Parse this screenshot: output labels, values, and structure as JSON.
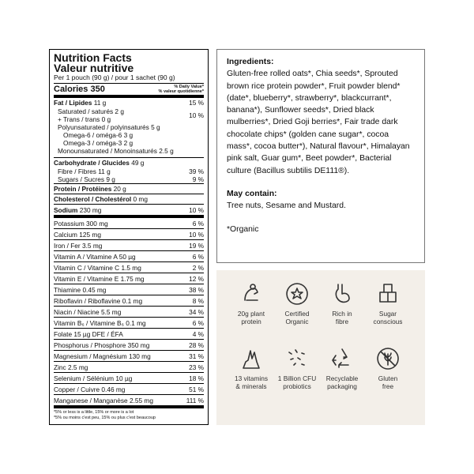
{
  "nutrition": {
    "title": "Nutrition Facts",
    "title_fr": "Valeur nutritive",
    "serving": "Per 1 pouch (90 g) / pour 1 sachet (90 g)",
    "calories": "Calories 350",
    "dv_header": [
      "% Daily Value*",
      "% valeur quotidienne*"
    ],
    "rows": [
      {
        "label": "Fat / Lipides",
        "amount": "11 g",
        "dv": "15 %"
      },
      {
        "label": "Saturated / saturés",
        "amount": "2 g",
        "dv": "10 %"
      },
      {
        "label": "+ Trans / trans",
        "amount": "0 g"
      },
      {
        "label": "Polyunsaturated / polyinsaturés",
        "amount": "5 g"
      },
      {
        "label": "Omega-6 / oméga-6",
        "amount": "3 g"
      },
      {
        "label": "Omega-3 / oméga-3",
        "amount": "2 g"
      },
      {
        "label": "Monounsaturated / Monoinsaturés",
        "amount": "2.5 g"
      },
      {
        "label": "Carbohydrate / Glucides",
        "amount": "49 g"
      },
      {
        "label": "Fibre / Fibres",
        "amount": "11 g",
        "dv": "39 %"
      },
      {
        "label": "Sugars / Sucres",
        "amount": "9 g",
        "dv": "9 %"
      },
      {
        "label": "Protein / Protéines",
        "amount": "20 g"
      },
      {
        "label": "Cholesterol / Cholestérol",
        "amount": "0 mg"
      },
      {
        "label": "Sodium",
        "amount": "230 mg",
        "dv": "10 %"
      },
      {
        "label": "Potassium",
        "amount": "300 mg",
        "dv": "6 %"
      },
      {
        "label": "Calcium",
        "amount": "125 mg",
        "dv": "10 %"
      },
      {
        "label": "Iron / Fer",
        "amount": "3.5 mg",
        "dv": "19 %"
      },
      {
        "label": "Vitamin A / Vitamine A",
        "amount": "50 µg",
        "dv": "6 %"
      },
      {
        "label": "Vitamin C / Vitamine C",
        "amount": "1.5 mg",
        "dv": "2 %"
      },
      {
        "label": "Vitamin E / Vitamine E",
        "amount": "1.75 mg",
        "dv": "12 %"
      },
      {
        "label": "Thiamine",
        "amount": "0.45 mg",
        "dv": "38 %"
      },
      {
        "label": "Riboflavin / Riboflavine",
        "amount": "0.1 mg",
        "dv": "8 %"
      },
      {
        "label": "Niacin / Niacine",
        "amount": "5.5 mg",
        "dv": "34 %"
      },
      {
        "label": "Vitamin B₆ / Vitamine B₆",
        "amount": "0.1 mg",
        "dv": "6 %"
      },
      {
        "label": "Folate",
        "amount": "15 µg DFE / ÉFA",
        "dv": "4 %"
      },
      {
        "label": "Phosphorus / Phosphore",
        "amount": "350 mg",
        "dv": "28 %"
      },
      {
        "label": "Magnesium / Magnésium",
        "amount": "130 mg",
        "dv": "31 %"
      },
      {
        "label": "Zinc",
        "amount": "2.5 mg",
        "dv": "23 %"
      },
      {
        "label": "Selenium / Sélénium",
        "amount": "10 µg",
        "dv": "18 %"
      },
      {
        "label": "Copper / Cuivre",
        "amount": "0.46 mg",
        "dv": "51 %"
      },
      {
        "label": "Manganese / Manganèse",
        "amount": "2.55 mg",
        "dv": "111 %"
      }
    ],
    "footnote": [
      "*5% or less is a little, 15% or more is a lot",
      "*5% ou moins c'est peu, 15% ou plus c'est beaucoup"
    ]
  },
  "ingredients": {
    "heading": "Ingredients:",
    "text": "Gluten-free rolled oats*, Chia seeds*, Sprouted brown rice protein powder*, Fruit powder blend* (date*, blueberry*, strawberry*, blackcurrant*, banana*), Sunflower seeds*, Dried black mulberries*, Dried Goji berries*, Fair trade dark chocolate chips* (golden cane sugar*, cocoa mass*, cocoa butter*), Natural flavour*, Himalayan pink salt, Guar gum*, Beet powder*, Bacterial culture (Bacillus subtilis DE111®).",
    "may_contain_heading": "May contain:",
    "may_contain": "Tree nuts, Sesame and Mustard.",
    "note": "*Organic"
  },
  "features": [
    {
      "lines": [
        "20g plant",
        "protein"
      ]
    },
    {
      "lines": [
        "Certified",
        "Organic"
      ]
    },
    {
      "lines": [
        "Rich in",
        "fibre"
      ]
    },
    {
      "lines": [
        "Sugar",
        "conscious"
      ]
    },
    {
      "lines": [
        "13 vitamins",
        "& minerals"
      ]
    },
    {
      "lines": [
        "1 Billion CFU",
        "probiotics"
      ]
    },
    {
      "lines": [
        "Recyclable",
        "packaging"
      ]
    },
    {
      "lines": [
        "Gluten",
        "free"
      ]
    }
  ]
}
